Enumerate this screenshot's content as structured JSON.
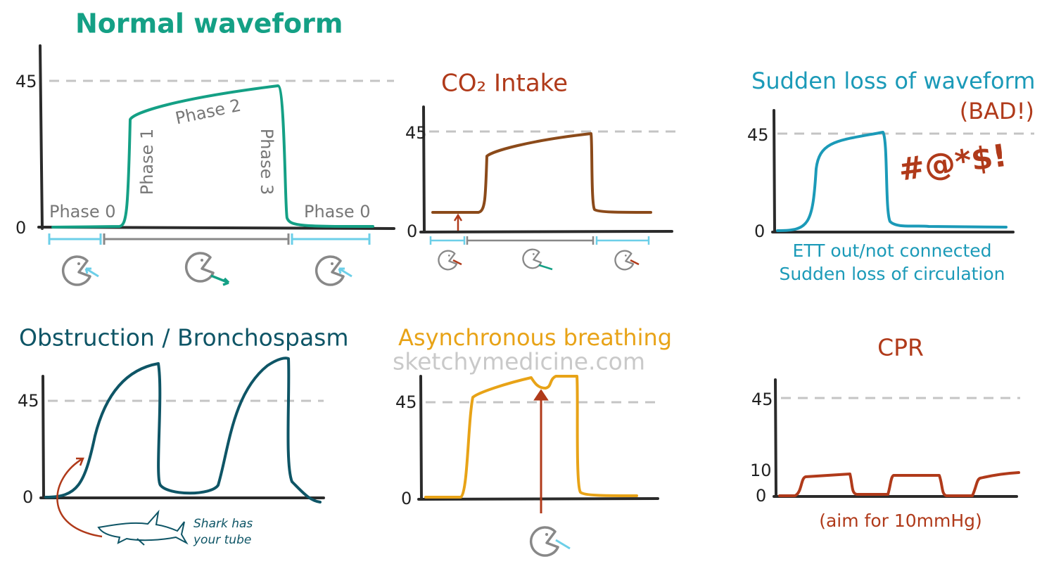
{
  "panels": [
    {
      "title": "Normal waveform",
      "ticks": [
        "45",
        "0"
      ],
      "phases": [
        "Phase 0",
        "Phase 1",
        "Phase 2",
        "Phase 3",
        "Phase 0"
      ]
    },
    {
      "title": "CO₂ Intake",
      "ticks": [
        "45",
        "0"
      ]
    },
    {
      "title": "Sudden loss of waveform",
      "subtitle": "(BAD!)",
      "exclamation": "#@*$!",
      "ticks": [
        "45",
        "0"
      ],
      "notes": [
        "ETT out/not connected",
        "Sudden loss of circulation"
      ]
    },
    {
      "title": "Obstruction / Bronchospasm",
      "ticks": [
        "45",
        "0"
      ],
      "notes": [
        "Shark has",
        "your tube"
      ]
    },
    {
      "title": "Asynchronous breathing",
      "ticks": [
        "45",
        "0"
      ]
    },
    {
      "title": "CPR",
      "ticks": [
        "45",
        "10",
        "0"
      ],
      "notes": [
        "(aim for 10mmHg)"
      ]
    }
  ],
  "watermark": "sketchymedicine.com"
}
